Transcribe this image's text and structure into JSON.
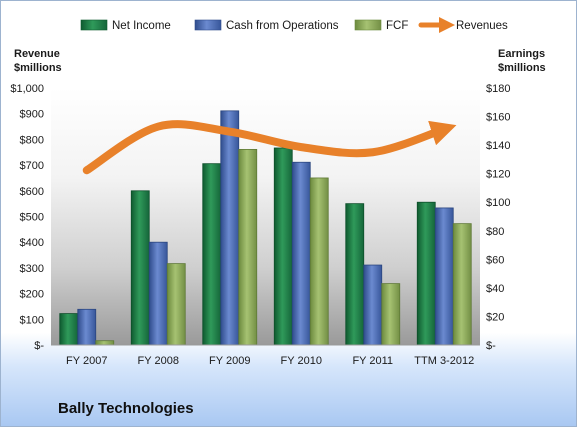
{
  "chart_data": {
    "type": "bar",
    "title": "Bally Technologies",
    "categories": [
      "FY 2007",
      "FY 2008",
      "FY 2009",
      "FY 2010",
      "FY 2011",
      "TTM 3-2012"
    ],
    "series": [
      {
        "name": "Net Income",
        "axis": "right",
        "color": "#1e7a45",
        "values": [
          22,
          108,
          127,
          138,
          99,
          100
        ]
      },
      {
        "name": "Cash from Operations",
        "axis": "right",
        "color": "#4a6ab0",
        "values": [
          25,
          72,
          164,
          128,
          56,
          96
        ]
      },
      {
        "name": "FCF",
        "axis": "right",
        "color": "#8aa85a",
        "values": [
          3,
          57,
          137,
          117,
          43,
          85
        ]
      },
      {
        "name": "Revenues",
        "axis": "left",
        "type": "line",
        "color": "#e8812a",
        "values": [
          680,
          850,
          830,
          770,
          750,
          840
        ]
      }
    ],
    "y_left": {
      "label_line1": "Revenue",
      "label_line2": "$millions",
      "lim": [
        0,
        1000
      ],
      "ticks": [
        "$1,000",
        "$900",
        "$800",
        "$700",
        "$600",
        "$500",
        "$400",
        "$300",
        "$200",
        "$100",
        "$-"
      ]
    },
    "y_right": {
      "label_line1": "Earnings",
      "label_line2": "$millions",
      "lim": [
        0,
        180
      ],
      "ticks": [
        "$180",
        "$160",
        "$140",
        "$120",
        "$100",
        "$80",
        "$60",
        "$40",
        "$20",
        "$-"
      ]
    },
    "legend_position": "top",
    "grid": false
  }
}
